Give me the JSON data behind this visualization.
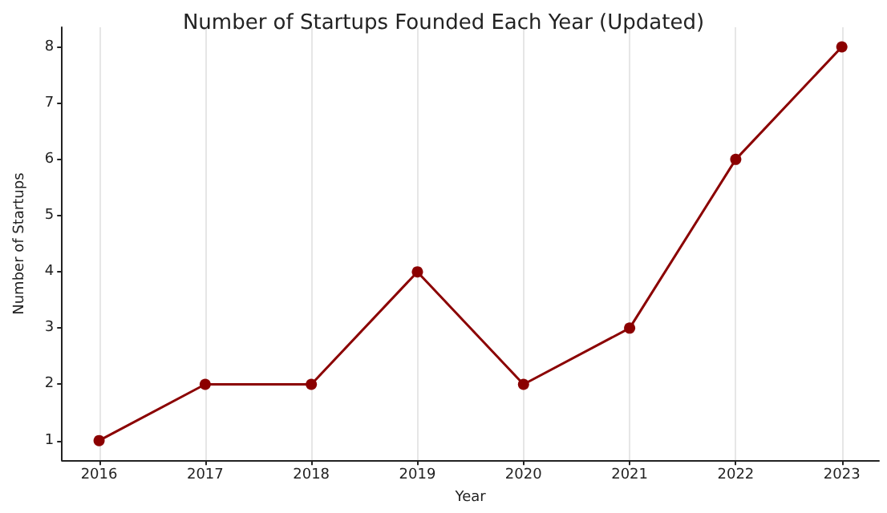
{
  "chart_data": {
    "type": "line",
    "title": "Number of Startups Founded Each Year (Updated)",
    "xlabel": "Year",
    "ylabel": "Number of Startups",
    "x": [
      2016,
      2017,
      2018,
      2019,
      2020,
      2021,
      2022,
      2023
    ],
    "series": [
      {
        "color": "#8b0000",
        "values": [
          1,
          2,
          2,
          4,
          2,
          3,
          6,
          8
        ]
      }
    ],
    "xlim": [
      2015.65,
      2023.35
    ],
    "xticks": [
      2016,
      2017,
      2018,
      2019,
      2020,
      2021,
      2022,
      2023
    ],
    "ylim": [
      0.65,
      8.35
    ],
    "yticks": [
      1,
      2,
      3,
      4,
      5,
      6,
      7,
      8
    ],
    "grid": "x",
    "marker": "circle",
    "line_style": "solid"
  }
}
